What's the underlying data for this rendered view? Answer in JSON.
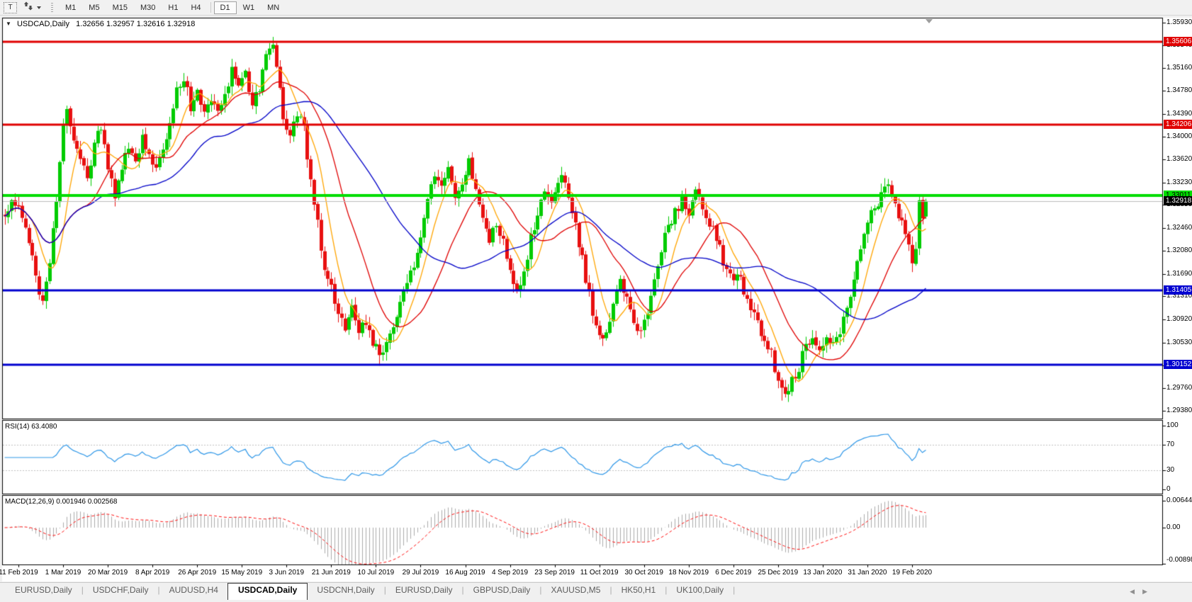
{
  "toolbar": {
    "text_tool_label": "T",
    "timeframes": [
      "M1",
      "M5",
      "M15",
      "M30",
      "H1",
      "H4",
      "D1",
      "W1",
      "MN"
    ],
    "active_timeframe": "D1"
  },
  "chart": {
    "title_symbol": "USDCAD,Daily",
    "title_ohlc": "1.32656 1.32957 1.32616 1.32918"
  },
  "chart_data": {
    "type": "candlestick",
    "symbol": "USDCAD",
    "timeframe": "Daily",
    "last_bar": {
      "open": 1.32656,
      "high": 1.32957,
      "low": 1.32616,
      "close": 1.32918
    },
    "current_price": 1.32918,
    "price_axis_ticks": [
      "1.35930",
      "1.35540",
      "1.35160",
      "1.34780",
      "1.34390",
      "1.34000",
      "1.33620",
      "1.33230",
      "1.32850",
      "1.32460",
      "1.32080",
      "1.31690",
      "1.31310",
      "1.30920",
      "1.30530",
      "1.30140",
      "1.29760",
      "1.29380"
    ],
    "horizontal_lines": [
      {
        "label": "1.35606",
        "price": 1.35606,
        "color": "#e00000",
        "width": 3,
        "text": "#ffffff"
      },
      {
        "label": "1.34206",
        "price": 1.34206,
        "color": "#e00000",
        "width": 3,
        "text": "#ffffff"
      },
      {
        "label": "1.33011",
        "price": 1.33011,
        "color": "#00dd00",
        "width": 4,
        "text": "#000000"
      },
      {
        "label": "1.31405",
        "price": 1.31405,
        "color": "#0000d0",
        "width": 3,
        "text": "#ffffff"
      },
      {
        "label": "1.30152",
        "price": 1.30152,
        "color": "#0000d0",
        "width": 3,
        "text": "#ffffff"
      }
    ],
    "current_price_badge": {
      "label": "1.32918",
      "bg": "#000000",
      "text": "#ffffff",
      "line_color": "#bdbdbd"
    },
    "candle_colors": {
      "up": "#00cb00",
      "down": "#e81010"
    },
    "moving_averages": [
      {
        "period": 8,
        "color": "#ffa500"
      },
      {
        "period": 20,
        "color": "#e00000"
      },
      {
        "period": 45,
        "color": "#0000c8"
      }
    ],
    "date_ticks": [
      {
        "label": "11 Feb 2019",
        "day": 0
      },
      {
        "label": "1 Mar 2019",
        "day": 13
      },
      {
        "label": "20 Mar 2019",
        "day": 26
      },
      {
        "label": "8 Apr 2019",
        "day": 39
      },
      {
        "label": "26 Apr 2019",
        "day": 52
      },
      {
        "label": "15 May 2019",
        "day": 65
      },
      {
        "label": "3 Jun 2019",
        "day": 78
      },
      {
        "label": "21 Jun 2019",
        "day": 91
      },
      {
        "label": "10 Jul 2019",
        "day": 104
      },
      {
        "label": "29 Jul 2019",
        "day": 117
      },
      {
        "label": "16 Aug 2019",
        "day": 130
      },
      {
        "label": "4 Sep 2019",
        "day": 143
      },
      {
        "label": "23 Sep 2019",
        "day": 156
      },
      {
        "label": "11 Oct 2019",
        "day": 169
      },
      {
        "label": "30 Oct 2019",
        "day": 182
      },
      {
        "label": "18 Nov 2019",
        "day": 195
      },
      {
        "label": "6 Dec 2019",
        "day": 208
      },
      {
        "label": "25 Dec 2019",
        "day": 221
      },
      {
        "label": "13 Jan 2020",
        "day": 234
      },
      {
        "label": "31 Jan 2020",
        "day": 247
      },
      {
        "label": "19 Feb 2020",
        "day": 260
      }
    ],
    "price_path": [
      [
        -4,
        1.327
      ],
      [
        -2,
        1.3292
      ],
      [
        0,
        1.3282
      ],
      [
        2,
        1.3252
      ],
      [
        4,
        1.3198
      ],
      [
        6,
        1.314
      ],
      [
        7,
        1.313
      ],
      [
        9,
        1.3195
      ],
      [
        11,
        1.33
      ],
      [
        13,
        1.3418
      ],
      [
        14,
        1.3445
      ],
      [
        16,
        1.3402
      ],
      [
        18,
        1.3358
      ],
      [
        20,
        1.333
      ],
      [
        22,
        1.339
      ],
      [
        24,
        1.3418
      ],
      [
        26,
        1.3352
      ],
      [
        28,
        1.3302
      ],
      [
        30,
        1.3352
      ],
      [
        32,
        1.3388
      ],
      [
        34,
        1.3362
      ],
      [
        36,
        1.3398
      ],
      [
        38,
        1.3372
      ],
      [
        40,
        1.3348
      ],
      [
        42,
        1.3388
      ],
      [
        44,
        1.3418
      ],
      [
        46,
        1.3478
      ],
      [
        48,
        1.3498
      ],
      [
        50,
        1.3452
      ],
      [
        52,
        1.3482
      ],
      [
        54,
        1.3442
      ],
      [
        56,
        1.3462
      ],
      [
        58,
        1.3442
      ],
      [
        60,
        1.3468
      ],
      [
        62,
        1.3512
      ],
      [
        64,
        1.3482
      ],
      [
        66,
        1.3512
      ],
      [
        68,
        1.3452
      ],
      [
        70,
        1.3482
      ],
      [
        72,
        1.3532
      ],
      [
        74,
        1.3552
      ],
      [
        75,
        1.3518
      ],
      [
        77,
        1.3432
      ],
      [
        79,
        1.3402
      ],
      [
        81,
        1.3432
      ],
      [
        83,
        1.3418
      ],
      [
        85,
        1.3322
      ],
      [
        87,
        1.3252
      ],
      [
        89,
        1.3182
      ],
      [
        91,
        1.3152
      ],
      [
        93,
        1.3102
      ],
      [
        95,
        1.3082
      ],
      [
        97,
        1.3112
      ],
      [
        99,
        1.3072
      ],
      [
        101,
        1.3092
      ],
      [
        103,
        1.3052
      ],
      [
        105,
        1.3032
      ],
      [
        107,
        1.3048
      ],
      [
        109,
        1.3072
      ],
      [
        111,
        1.3122
      ],
      [
        113,
        1.3162
      ],
      [
        115,
        1.3178
      ],
      [
        117,
        1.3222
      ],
      [
        119,
        1.3302
      ],
      [
        121,
        1.3332
      ],
      [
        123,
        1.3312
      ],
      [
        125,
        1.3342
      ],
      [
        127,
        1.3292
      ],
      [
        129,
        1.3322
      ],
      [
        131,
        1.3362
      ],
      [
        133,
        1.3312
      ],
      [
        135,
        1.3272
      ],
      [
        137,
        1.3228
      ],
      [
        139,
        1.3252
      ],
      [
        141,
        1.3222
      ],
      [
        143,
        1.3182
      ],
      [
        145,
        1.3138
      ],
      [
        147,
        1.3172
      ],
      [
        149,
        1.3232
      ],
      [
        151,
        1.3272
      ],
      [
        153,
        1.3302
      ],
      [
        155,
        1.3288
      ],
      [
        157,
        1.3322
      ],
      [
        159,
        1.3332
      ],
      [
        161,
        1.3278
      ],
      [
        163,
        1.3222
      ],
      [
        165,
        1.3162
      ],
      [
        167,
        1.3102
      ],
      [
        169,
        1.3072
      ],
      [
        171,
        1.3062
      ],
      [
        173,
        1.3112
      ],
      [
        175,
        1.3162
      ],
      [
        177,
        1.3122
      ],
      [
        179,
        1.3082
      ],
      [
        181,
        1.3072
      ],
      [
        183,
        1.3102
      ],
      [
        185,
        1.3162
      ],
      [
        187,
        1.3212
      ],
      [
        189,
        1.3252
      ],
      [
        191,
        1.3272
      ],
      [
        193,
        1.3292
      ],
      [
        195,
        1.3272
      ],
      [
        197,
        1.3302
      ],
      [
        199,
        1.3282
      ],
      [
        201,
        1.3252
      ],
      [
        203,
        1.3232
      ],
      [
        205,
        1.3192
      ],
      [
        207,
        1.3162
      ],
      [
        209,
        1.3172
      ],
      [
        211,
        1.3142
      ],
      [
        213,
        1.3112
      ],
      [
        215,
        1.3082
      ],
      [
        217,
        1.3062
      ],
      [
        219,
        1.3032
      ],
      [
        221,
        1.2992
      ],
      [
        223,
        1.2968
      ],
      [
        225,
        1.2988
      ],
      [
        227,
        1.3012
      ],
      [
        229,
        1.3052
      ],
      [
        231,
        1.3062
      ],
      [
        233,
        1.3042
      ],
      [
        235,
        1.3062
      ],
      [
        237,
        1.3052
      ],
      [
        239,
        1.3072
      ],
      [
        241,
        1.3112
      ],
      [
        243,
        1.3162
      ],
      [
        245,
        1.3212
      ],
      [
        247,
        1.3252
      ],
      [
        249,
        1.3282
      ],
      [
        251,
        1.3302
      ],
      [
        253,
        1.3312
      ],
      [
        255,
        1.3292
      ],
      [
        257,
        1.3252
      ],
      [
        259,
        1.3212
      ],
      [
        260,
        1.3192
      ],
      [
        261,
        1.322
      ],
      [
        262,
        1.33
      ],
      [
        263,
        1.3265
      ],
      [
        264,
        1.32918
      ]
    ],
    "pins": [
      [
        6,
        "low",
        1.3127
      ],
      [
        74,
        "high",
        1.35612
      ],
      [
        105,
        "low",
        1.3014
      ],
      [
        222,
        "low",
        1.2955
      ],
      [
        253,
        "high",
        1.3329
      ]
    ],
    "noise_seed": 12,
    "noise_amplitude": 0.00095,
    "rsi": {
      "text": "RSI(14) 63.4080",
      "name": "RSI",
      "period": 14,
      "value": 63.408,
      "levels": [
        100,
        70,
        30,
        0
      ],
      "dashed_levels": [
        70,
        30
      ],
      "line_color": "#2e97e8"
    },
    "macd": {
      "text": "MACD(12,26,9) 0.001946 0.002568",
      "name": "MACD",
      "fast": 12,
      "slow": 26,
      "signal": 9,
      "value_main": 0.001946,
      "value_signal": 0.002568,
      "axis_labels": [
        "0.006448",
        "0.00",
        "-0.008982"
      ],
      "axis_values": [
        0.006448,
        0,
        -0.008982
      ],
      "histogram_color": "#ababab",
      "signal_color": "#ff1010"
    },
    "shift_marker": true
  },
  "tabs": {
    "items": [
      "EURUSD,Daily",
      "USDCHF,Daily",
      "AUDUSD,H4",
      "USDCAD,Daily",
      "USDCNH,Daily",
      "EURUSD,Daily",
      "GBPUSD,Daily",
      "XAUUSD,M5",
      "HK50,H1",
      "UK100,Daily"
    ],
    "active_index": 3,
    "left_arrow": "◀",
    "right_arrow": "▶"
  }
}
